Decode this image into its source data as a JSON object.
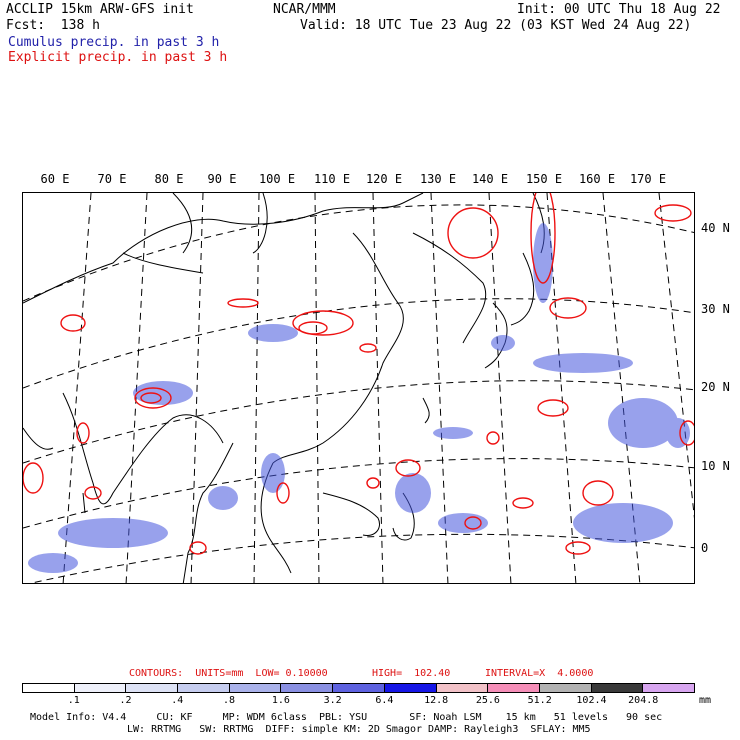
{
  "header": {
    "model": "ACCLIP 15km ARW-GFS init",
    "forecast": "Fcst:  138 h",
    "cumulus": "Cumulus precip. in past 3 h",
    "explicit": "Explicit precip. in past 3 h",
    "org": "NCAR/MMM",
    "init": "Init: 00 UTC Thu 18 Aug 22",
    "valid": "Valid: 18 UTC Tue 23 Aug 22 (03 KST Wed 24 Aug 22)"
  },
  "map": {
    "lon_labels": [
      "60 E",
      "70 E",
      "80 E",
      "90 E",
      "100 E",
      "110 E",
      "120 E",
      "130 E",
      "140 E",
      "150 E",
      "160 E",
      "170 E"
    ],
    "lat_labels": [
      "40 N",
      "30 N",
      "20 N",
      "10 N",
      "0"
    ],
    "colors": {
      "coast": "#000000",
      "grid": "#000000",
      "cumulus": "#2233cc",
      "explicit": "#ee1111"
    }
  },
  "contours_line": {
    "contours": "CONTOURS:  UNITS=mm  LOW= 0.10000",
    "high": "HIGH=  102.40",
    "interval": "INTERVAL=X  4.0000"
  },
  "colorbar": {
    "ticks": [
      ".1",
      ".2",
      ".4",
      ".8",
      "1.6",
      "3.2",
      "6.4",
      "12.8",
      "25.6",
      "51.2",
      "102.4",
      "204.8"
    ],
    "unit": "mm",
    "colors": [
      "#ffffff",
      "#eef0fa",
      "#dde2f5",
      "#c6cdef",
      "#aab2ea",
      "#8a90e2",
      "#5e62e0",
      "#1616e6",
      "#f2c2c8",
      "#f58eb8",
      "#b2b2b2",
      "#3a3a3a",
      "#d8a6f0"
    ]
  },
  "footer": {
    "line1": "Model Info: V4.4     CU: KF     MP: WDM 6class  PBL: YSU       SF: Noah LSM    15 km   51 levels   90 sec",
    "line2": "LW: RRTMG   SW: RRTMG  DIFF: simple KM: 2D Smagor DAMP: Rayleigh3  SFLAY: MM5"
  }
}
